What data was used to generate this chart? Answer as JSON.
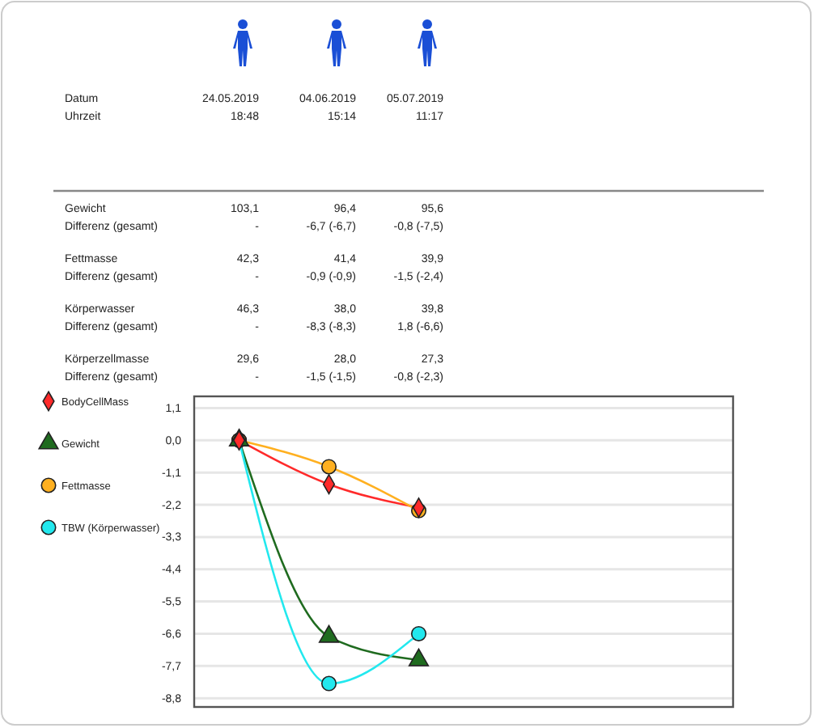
{
  "chart_data": [
    {
      "type": "other",
      "annotations": [
        "Datum",
        "24.05.2019",
        "04.06.2019",
        "05.07.2019",
        "Uhrzeit",
        "18:48",
        "15:14",
        "11:17",
        "Gewicht",
        "103,1",
        "96,4",
        "95,6",
        "Differenz (gesamt)",
        "-",
        "-6,7 (-6,7)",
        "-0,8 (-7,5)",
        "Fettmasse",
        "42,3",
        "41,4",
        "39,9",
        "Differenz (gesamt)",
        "-",
        "-0,9 (-0,9)",
        "-1,5 (-2,4)",
        "Körperwasser",
        "46,3",
        "38,0",
        "39,8",
        "Differenz (gesamt)",
        "-",
        "-8,3 (-8,3)",
        "1,8 (-6,6)",
        "Körperzellmasse",
        "29,6",
        "28,0",
        "27,3",
        "Differenz (gesamt)",
        "-",
        "-1,5 (-1,5)",
        "-0,8 (-2,3)"
      ]
    },
    {
      "type": "line",
      "categories": [
        null,
        null,
        null,
        null,
        null,
        null
      ],
      "series": [
        {
          "name": "BodyCellMass",
          "color": "#ff2a2a",
          "marker": "diamond",
          "values": [
            0,
            -1.5,
            -2.3,
            null,
            null,
            null
          ]
        },
        {
          "name": "Gewicht",
          "color": "#1f6b1f",
          "marker": "triangle",
          "values": [
            0,
            -6.7,
            -7.5,
            null,
            null,
            null
          ]
        },
        {
          "name": "Fettmasse",
          "color": "#ffb020",
          "marker": "circle",
          "values": [
            0,
            -0.9,
            -2.4,
            null,
            null,
            null
          ]
        },
        {
          "name": "TBW (Körperwasser)",
          "color": "#22e8ee",
          "marker": "circle",
          "values": [
            0,
            -8.3,
            -6.6,
            null,
            null,
            null
          ]
        }
      ],
      "ylim": [
        -9.1,
        1.5
      ],
      "yticks": [
        {
          "value": 1.1,
          "label": "1,1"
        },
        {
          "value": 0,
          "label": "0,0"
        },
        {
          "value": -1.1,
          "label": "-1,1"
        },
        {
          "value": -2.2,
          "label": "-2,2"
        },
        {
          "value": -3.3,
          "label": "-3,3"
        },
        {
          "value": -4.4,
          "label": "-4,4"
        },
        {
          "value": -5.5,
          "label": "-5,5"
        },
        {
          "value": -6.6,
          "label": "-6,6"
        },
        {
          "value": -7.7,
          "label": "-7,7"
        },
        {
          "value": -8.8,
          "label": "-8,8"
        }
      ],
      "grid": "y",
      "legend": "left",
      "tick_labels": "y"
    }
  ]
}
